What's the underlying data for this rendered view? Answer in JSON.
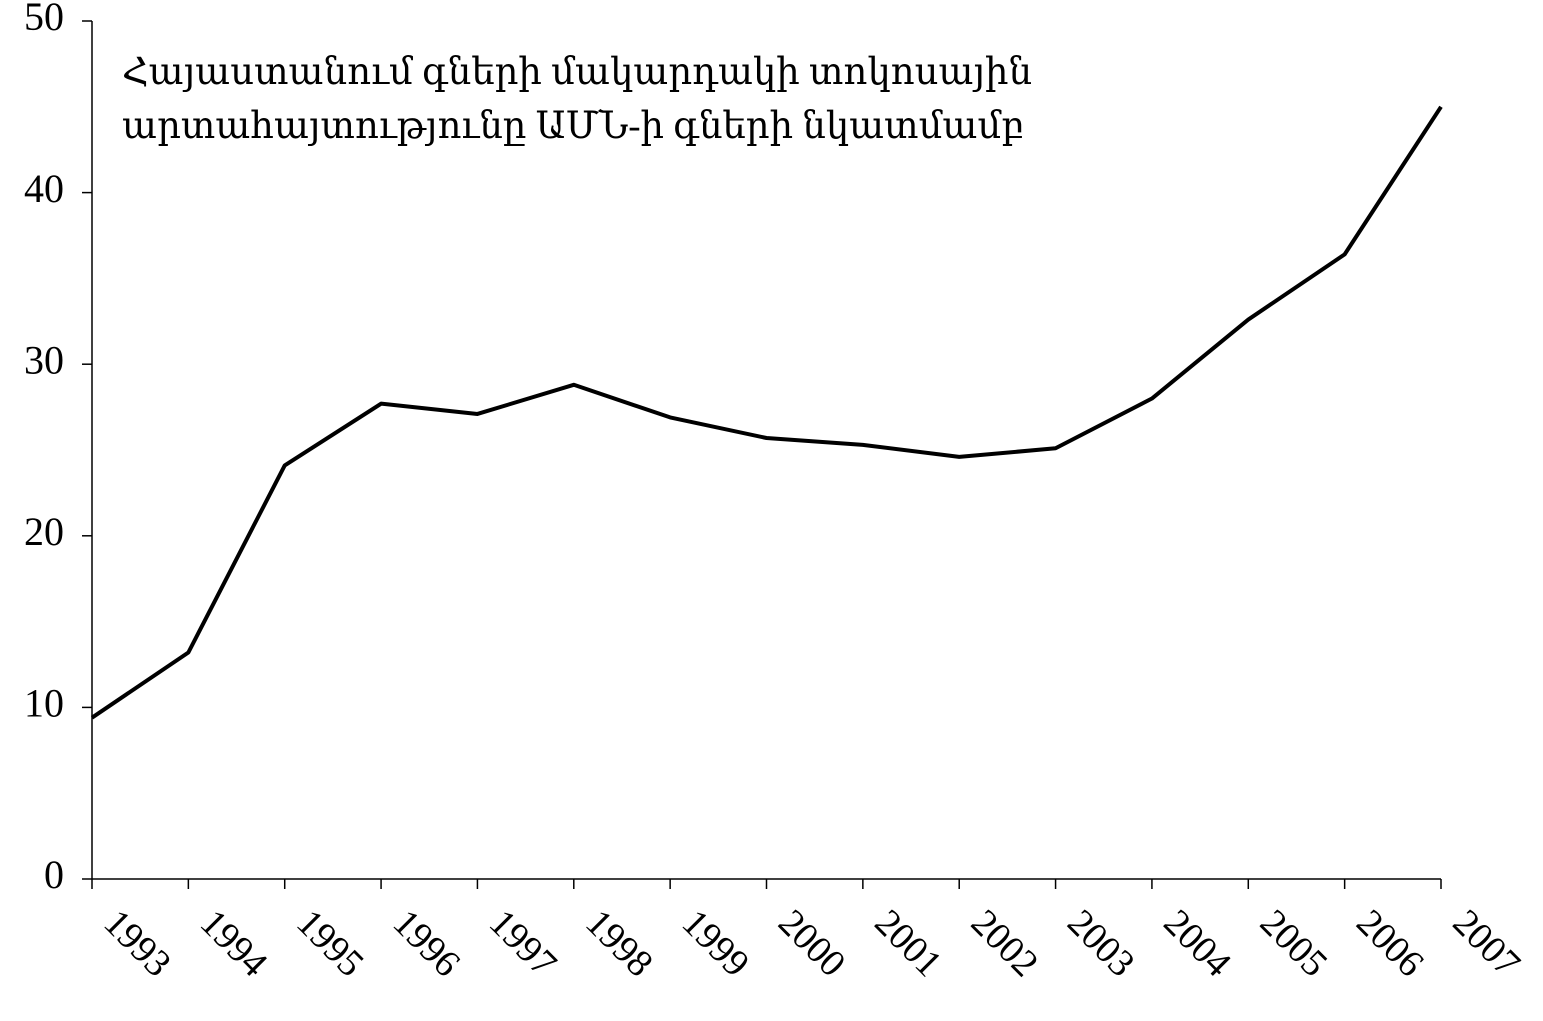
{
  "chart_data": {
    "type": "line",
    "annotation": [
      "Հայաստանում գների մակարդակի տոկոսային",
      "արտահայտությունը ԱՄՆ-ի գների նկատմամբ"
    ],
    "categories": [
      "1993",
      "1994",
      "1995",
      "1996",
      "1997",
      "1998",
      "1999",
      "2000",
      "2001",
      "2002",
      "2003",
      "2004",
      "2005",
      "2006",
      "2007"
    ],
    "series": [
      {
        "color": "#000000",
        "values": [
          9.4,
          13.2,
          24.1,
          27.7,
          27.1,
          28.8,
          26.9,
          25.7,
          25.3,
          24.6,
          25.1,
          28.0,
          32.6,
          36.4,
          45.0
        ]
      }
    ],
    "ylim": [
      0,
      50
    ],
    "yticks": [
      0,
      10,
      20,
      30,
      40,
      50
    ],
    "grid": false
  }
}
